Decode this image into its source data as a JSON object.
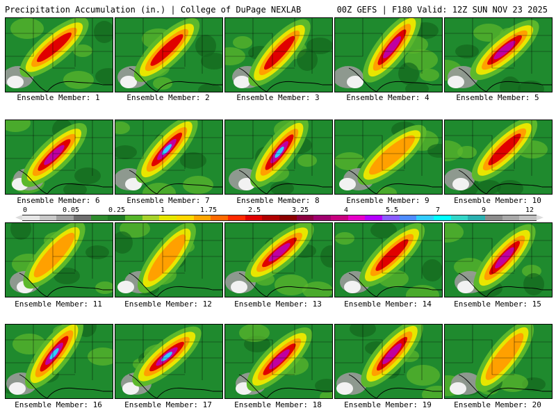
{
  "header": {
    "title_left": "Precipitation Accumulation (in.) | College of DuPage NEXLAB",
    "title_right": "00Z GEFS | F180 Valid: 12Z SUN NOV 23 2025"
  },
  "members": [
    {
      "label": "Ensemble Member: 1",
      "intensity": 2
    },
    {
      "label": "Ensemble Member: 2",
      "intensity": 2
    },
    {
      "label": "Ensemble Member: 3",
      "intensity": 2
    },
    {
      "label": "Ensemble Member: 4",
      "intensity": 3
    },
    {
      "label": "Ensemble Member: 5",
      "intensity": 3
    },
    {
      "label": "Ensemble Member: 6",
      "intensity": 3
    },
    {
      "label": "Ensemble Member: 7",
      "intensity": 4
    },
    {
      "label": "Ensemble Member: 8",
      "intensity": 4
    },
    {
      "label": "Ensemble Member: 9",
      "intensity": 1
    },
    {
      "label": "Ensemble Member: 10",
      "intensity": 2
    },
    {
      "label": "Ensemble Member: 11",
      "intensity": 1
    },
    {
      "label": "Ensemble Member: 12",
      "intensity": 1
    },
    {
      "label": "Ensemble Member: 13",
      "intensity": 3
    },
    {
      "label": "Ensemble Member: 14",
      "intensity": 2
    },
    {
      "label": "Ensemble Member: 15",
      "intensity": 3
    },
    {
      "label": "Ensemble Member: 16",
      "intensity": 4
    },
    {
      "label": "Ensemble Member: 17",
      "intensity": 4
    },
    {
      "label": "Ensemble Member: 18",
      "intensity": 3
    },
    {
      "label": "Ensemble Member: 19",
      "intensity": 3
    },
    {
      "label": "Ensemble Member: 20",
      "intensity": 1
    }
  ],
  "legend": {
    "labels": [
      "0",
      "0.05",
      "0.25",
      "1",
      "1.75",
      "2.5",
      "3.25",
      "4",
      "5.5",
      "7",
      "9",
      "12"
    ],
    "colors": [
      "#e6e6e6",
      "#c8c8c8",
      "#a0a0a0",
      "#6e6e6e",
      "#2e8b2e",
      "#1f7a24",
      "#55b52a",
      "#a6d22c",
      "#e6e600",
      "#ffd700",
      "#ffa500",
      "#ff6a00",
      "#ff2a00",
      "#e00000",
      "#b00000",
      "#8b0000",
      "#8b0040",
      "#a0006e",
      "#c8007f",
      "#e600c8",
      "#b400ff",
      "#8a5cff",
      "#4f8cff",
      "#33ccff",
      "#00ffff",
      "#33d6c8",
      "#2ab0b0",
      "#8c8c8c",
      "#a8a8a8",
      "#c0c0c0"
    ]
  },
  "palette": {
    "base": "#1f8a2e",
    "dark_green": "#14661e",
    "light_green": "#5cb82c",
    "yellow": "#e8e600",
    "orange": "#ffa000",
    "red": "#e00000",
    "magenta": "#c000a0",
    "cyan": "#33ccff",
    "gray": "#9a9a9a",
    "white": "#f2f2f2"
  }
}
